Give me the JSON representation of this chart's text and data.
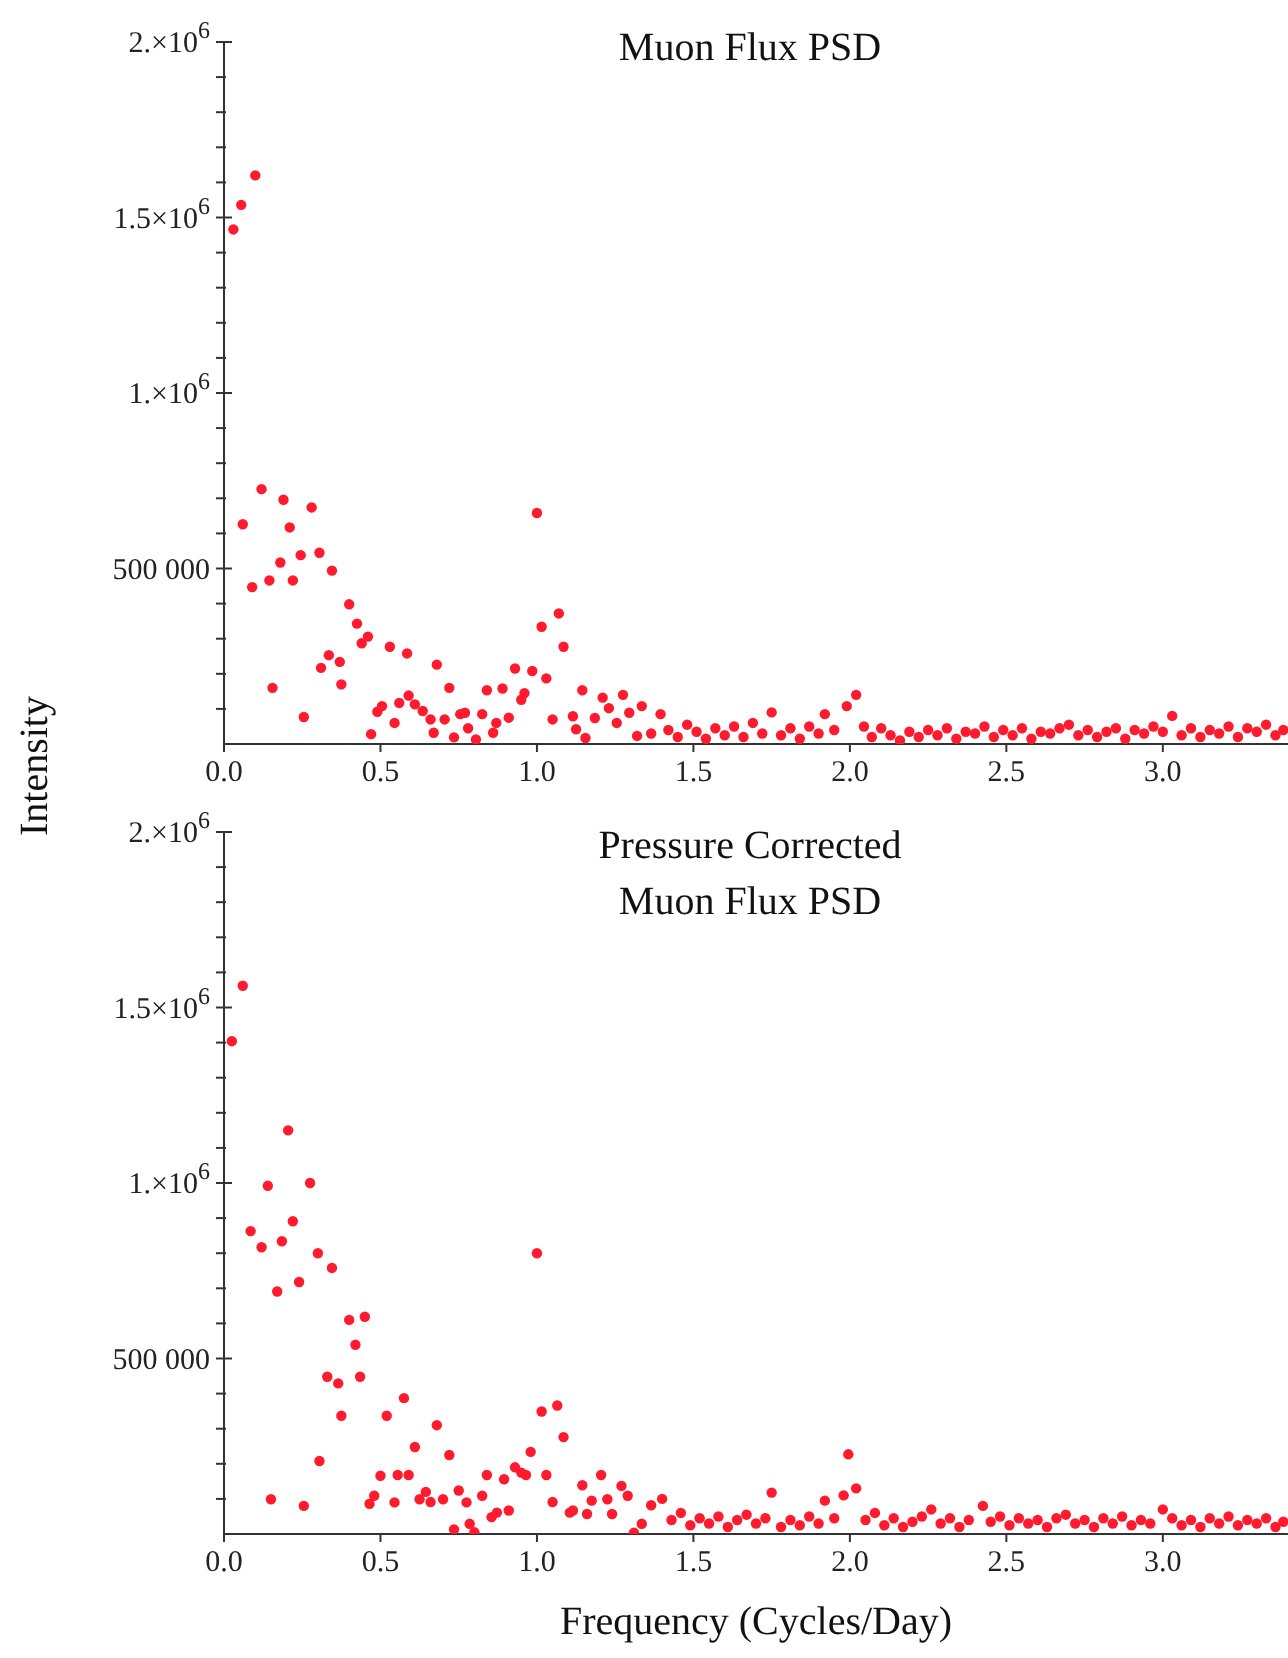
{
  "chart_data": [
    {
      "type": "scatter",
      "title": "Muon Flux PSD",
      "ylabel": "Intensity",
      "marker": "circle",
      "xlim": [
        0,
        3.4
      ],
      "xticks": [
        {
          "value": 0,
          "label": "0.0"
        },
        {
          "value": 0.5,
          "label": "0.5"
        },
        {
          "value": 1,
          "label": "1.0"
        },
        {
          "value": 1.5,
          "label": "1.5"
        },
        {
          "value": 2,
          "label": "2.0"
        },
        {
          "value": 2.5,
          "label": "2.5"
        },
        {
          "value": 3,
          "label": "3.0"
        }
      ],
      "ylim": [
        0,
        2000000
      ],
      "yticks": [
        {
          "value": 100000,
          "label": null
        },
        {
          "value": 200000,
          "label": null
        },
        {
          "value": 300000,
          "label": null
        },
        {
          "value": 400000,
          "label": null
        },
        {
          "value": 500000,
          "label": "500 000"
        },
        {
          "value": 600000,
          "label": null
        },
        {
          "value": 700000,
          "label": null
        },
        {
          "value": 800000,
          "label": null
        },
        {
          "value": 900000,
          "label": null
        },
        {
          "value": 1000000,
          "label": "1.×10$^{6}$"
        },
        {
          "value": 1100000,
          "label": null
        },
        {
          "value": 1200000,
          "label": null
        },
        {
          "value": 1300000,
          "label": null
        },
        {
          "value": 1400000,
          "label": null
        },
        {
          "value": 1500000,
          "label": "1.5×10$^{6}$"
        },
        {
          "value": 1600000,
          "label": null
        },
        {
          "value": 1700000,
          "label": null
        },
        {
          "value": 1800000,
          "label": null
        },
        {
          "value": 1900000,
          "label": null
        },
        {
          "value": 2000000,
          "label": "2.×10$^{6}$"
        }
      ],
      "series": [
        {
          "color": "#ff1a2e",
          "x": [
            0.03,
            0.055,
            0.1,
            0.06,
            0.09,
            0.12,
            0.145,
            0.155,
            0.18,
            0.19,
            0.21,
            0.22,
            0.245,
            0.255,
            0.28,
            0.305,
            0.31,
            0.335,
            0.345,
            0.37,
            0.375,
            0.4,
            0.425,
            0.44,
            0.46,
            0.47,
            0.49,
            0.505,
            0.53,
            0.545,
            0.56,
            0.585,
            0.59,
            0.61,
            0.635,
            0.66,
            0.67,
            0.68,
            0.705,
            0.72,
            0.735,
            0.755,
            0.77,
            0.78,
            0.805,
            0.825,
            0.84,
            0.86,
            0.87,
            0.89,
            0.91,
            0.93,
            0.95,
            0.96,
            0.985,
            1.0,
            1.015,
            1.03,
            1.05,
            1.07,
            1.085,
            1.115,
            1.125,
            1.145,
            1.155,
            1.185,
            1.21,
            1.23,
            1.255,
            1.275,
            1.295,
            1.32,
            1.335,
            1.365,
            1.395,
            1.42,
            1.45,
            1.48,
            1.51,
            1.54,
            1.57,
            1.6,
            1.63,
            1.66,
            1.69,
            1.72,
            1.75,
            1.78,
            1.81,
            1.84,
            1.87,
            1.9,
            1.92,
            1.95,
            1.99,
            2.02,
            2.045,
            2.07,
            2.1,
            2.13,
            2.16,
            2.19,
            2.22,
            2.25,
            2.28,
            2.31,
            2.34,
            2.37,
            2.4,
            2.43,
            2.46,
            2.49,
            2.52,
            2.55,
            2.58,
            2.61,
            2.64,
            2.67,
            2.7,
            2.73,
            2.76,
            2.79,
            2.82,
            2.85,
            2.88,
            2.91,
            2.94,
            2.97,
            3.0,
            3.03,
            3.06,
            3.09,
            3.12,
            3.15,
            3.18,
            3.21,
            3.24,
            3.27,
            3.3,
            3.33,
            3.36,
            3.385
          ],
          "values": [
            1466000,
            1536000,
            1620000,
            626000,
            447000,
            726000,
            466000,
            160000,
            517000,
            696000,
            617000,
            466000,
            538000,
            77000,
            674000,
            545000,
            217000,
            253000,
            494000,
            234000,
            170000,
            398000,
            343000,
            287000,
            306000,
            28000,
            92000,
            108000,
            277000,
            60000,
            117000,
            258000,
            138000,
            113000,
            94000,
            70000,
            32000,
            226000,
            70000,
            160000,
            19000,
            85000,
            89000,
            45000,
            13000,
            85000,
            153000,
            32000,
            60000,
            158000,
            75000,
            215000,
            126000,
            145000,
            208000,
            658000,
            334000,
            187000,
            70000,
            372000,
            277000,
            79000,
            42000,
            153000,
            17000,
            74000,
            132000,
            102000,
            60000,
            140000,
            89000,
            23000,
            108000,
            30000,
            85000,
            40000,
            20000,
            55000,
            35000,
            15000,
            45000,
            25000,
            50000,
            20000,
            60000,
            30000,
            90000,
            25000,
            45000,
            15000,
            50000,
            30000,
            85000,
            40000,
            108000,
            140000,
            50000,
            20000,
            45000,
            25000,
            10000,
            35000,
            20000,
            40000,
            25000,
            45000,
            15000,
            35000,
            30000,
            50000,
            20000,
            40000,
            25000,
            45000,
            15000,
            35000,
            30000,
            45000,
            55000,
            25000,
            40000,
            20000,
            35000,
            45000,
            15000,
            40000,
            30000,
            50000,
            35000,
            80000,
            25000,
            45000,
            20000,
            40000,
            30000,
            50000,
            20000,
            45000,
            35000,
            55000,
            25000,
            40000
          ]
        }
      ]
    },
    {
      "type": "scatter",
      "title": "Pressure Corrected\nMuon Flux PSD",
      "xlabel": "Frequency (Cycles/Day)",
      "marker": "circle",
      "xlim": [
        0,
        3.4
      ],
      "xticks": [
        {
          "value": 0,
          "label": "0.0"
        },
        {
          "value": 0.5,
          "label": "0.5"
        },
        {
          "value": 1,
          "label": "1.0"
        },
        {
          "value": 1.5,
          "label": "1.5"
        },
        {
          "value": 2,
          "label": "2.0"
        },
        {
          "value": 2.5,
          "label": "2.5"
        },
        {
          "value": 3,
          "label": "3.0"
        }
      ],
      "ylim": [
        0,
        2000000
      ],
      "yticks": [
        {
          "value": 100000,
          "label": null
        },
        {
          "value": 200000,
          "label": null
        },
        {
          "value": 300000,
          "label": null
        },
        {
          "value": 400000,
          "label": null
        },
        {
          "value": 500000,
          "label": "500 000"
        },
        {
          "value": 600000,
          "label": null
        },
        {
          "value": 700000,
          "label": null
        },
        {
          "value": 800000,
          "label": null
        },
        {
          "value": 900000,
          "label": null
        },
        {
          "value": 1000000,
          "label": "1.×10$^{6}$"
        },
        {
          "value": 1100000,
          "label": null
        },
        {
          "value": 1200000,
          "label": null
        },
        {
          "value": 1300000,
          "label": null
        },
        {
          "value": 1400000,
          "label": null
        },
        {
          "value": 1500000,
          "label": "1.5×10$^{6}$"
        },
        {
          "value": 1600000,
          "label": null
        },
        {
          "value": 1700000,
          "label": null
        },
        {
          "value": 1800000,
          "label": null
        },
        {
          "value": 1900000,
          "label": null
        },
        {
          "value": 2000000,
          "label": "2.×10$^{6}$"
        }
      ],
      "series": [
        {
          "color": "#ff1a2e",
          "x": [
            0.025,
            0.06,
            0.085,
            0.12,
            0.14,
            0.15,
            0.17,
            0.185,
            0.205,
            0.22,
            0.24,
            0.255,
            0.275,
            0.3,
            0.305,
            0.33,
            0.345,
            0.365,
            0.375,
            0.4,
            0.42,
            0.435,
            0.45,
            0.465,
            0.48,
            0.5,
            0.52,
            0.545,
            0.555,
            0.575,
            0.59,
            0.61,
            0.625,
            0.645,
            0.66,
            0.68,
            0.7,
            0.72,
            0.735,
            0.75,
            0.775,
            0.785,
            0.8,
            0.825,
            0.84,
            0.855,
            0.872,
            0.895,
            0.91,
            0.93,
            0.95,
            0.965,
            0.98,
            1.0,
            1.015,
            1.03,
            1.05,
            1.065,
            1.085,
            1.105,
            1.115,
            1.145,
            1.16,
            1.175,
            1.205,
            1.225,
            1.24,
            1.27,
            1.29,
            1.31,
            1.335,
            1.365,
            1.4,
            1.43,
            1.46,
            1.49,
            1.52,
            1.55,
            1.58,
            1.61,
            1.64,
            1.67,
            1.7,
            1.73,
            1.75,
            1.78,
            1.81,
            1.84,
            1.87,
            1.9,
            1.92,
            1.95,
            1.98,
            1.995,
            2.02,
            2.05,
            2.08,
            2.11,
            2.14,
            2.17,
            2.2,
            2.23,
            2.26,
            2.29,
            2.32,
            2.35,
            2.38,
            2.425,
            2.45,
            2.48,
            2.51,
            2.54,
            2.57,
            2.6,
            2.63,
            2.66,
            2.69,
            2.72,
            2.75,
            2.78,
            2.81,
            2.84,
            2.87,
            2.9,
            2.93,
            2.96,
            3.0,
            3.03,
            3.06,
            3.09,
            3.12,
            3.15,
            3.18,
            3.21,
            3.24,
            3.27,
            3.3,
            3.33,
            3.36,
            3.385
          ],
          "values": [
            1404000,
            1562000,
            863000,
            817000,
            992000,
            99000,
            691000,
            834000,
            1150000,
            891000,
            718000,
            80000,
            1000000,
            800000,
            208000,
            448000,
            758000,
            429000,
            337000,
            610000,
            539000,
            448000,
            619000,
            86000,
            109000,
            166000,
            337000,
            90000,
            168000,
            387000,
            168000,
            248000,
            99000,
            120000,
            91000,
            310000,
            99000,
            225000,
            13000,
            124000,
            90000,
            29000,
            5000,
            109000,
            168000,
            48000,
            61000,
            156000,
            67000,
            190000,
            175000,
            168000,
            234000,
            800000,
            349000,
            168000,
            91000,
            366000,
            276000,
            61000,
            67000,
            139000,
            57000,
            95000,
            168000,
            99000,
            57000,
            137000,
            109000,
            4000,
            29000,
            82000,
            100000,
            40000,
            60000,
            25000,
            45000,
            30000,
            50000,
            20000,
            40000,
            55000,
            30000,
            45000,
            118000,
            20000,
            40000,
            25000,
            50000,
            30000,
            95000,
            45000,
            110000,
            227000,
            130000,
            40000,
            60000,
            25000,
            45000,
            20000,
            35000,
            50000,
            70000,
            30000,
            45000,
            20000,
            40000,
            80000,
            35000,
            50000,
            25000,
            45000,
            30000,
            40000,
            20000,
            45000,
            55000,
            30000,
            40000,
            20000,
            45000,
            30000,
            50000,
            25000,
            40000,
            30000,
            70000,
            45000,
            25000,
            40000,
            20000,
            45000,
            30000,
            50000,
            25000,
            40000,
            30000,
            45000,
            20000,
            35000
          ]
        }
      ]
    }
  ]
}
